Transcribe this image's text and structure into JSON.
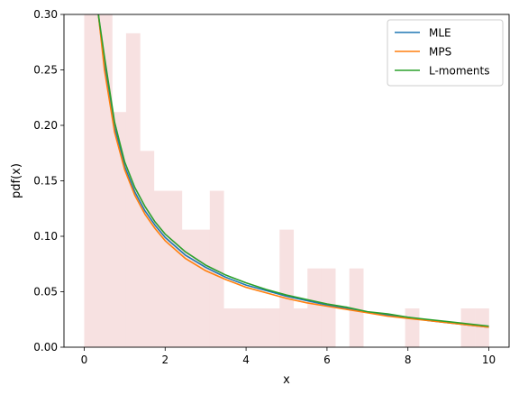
{
  "chart_data": {
    "type": "line",
    "xlabel": "x",
    "ylabel": "pdf(x)",
    "xlim": [
      -0.5,
      10.5
    ],
    "ylim": [
      0,
      0.3
    ],
    "x_ticks": [
      "0",
      "2",
      "4",
      "6",
      "8",
      "10"
    ],
    "y_ticks": [
      "0.00",
      "0.05",
      "0.10",
      "0.15",
      "0.20",
      "0.25",
      "0.30"
    ],
    "grid": false,
    "legend_position": "top-right",
    "histogram": {
      "color": "#f7e1e1",
      "bin_edges": [
        0,
        0.345,
        0.69,
        1.034,
        1.379,
        1.724,
        2.069,
        2.414,
        2.759,
        3.103,
        3.448,
        3.793,
        4.138,
        4.483,
        4.828,
        5.172,
        5.517,
        5.862,
        6.207,
        6.552,
        6.897,
        7.241,
        7.586,
        7.931,
        8.276,
        8.621,
        8.966,
        9.31,
        9.655,
        10.0
      ],
      "heights": [
        0.3,
        0.3,
        0.212,
        0.283,
        0.177,
        0.141,
        0.141,
        0.106,
        0.106,
        0.141,
        0.035,
        0.035,
        0.035,
        0.035,
        0.106,
        0.035,
        0.071,
        0.071,
        0.0,
        0.071,
        0.0,
        0.0,
        0.0,
        0.035,
        0.0,
        0.0,
        0.0,
        0.035,
        0.035
      ]
    },
    "series": [
      {
        "name": "MLE",
        "color": "#1f77b4",
        "x": [
          0.35,
          0.5,
          0.75,
          1.0,
          1.25,
          1.5,
          1.75,
          2.0,
          2.5,
          3.0,
          3.5,
          4.0,
          4.5,
          5.0,
          5.5,
          6.0,
          6.5,
          7.0,
          7.5,
          8.0,
          8.5,
          9.0,
          9.5,
          10.0
        ],
        "y": [
          0.3,
          0.255,
          0.198,
          0.163,
          0.14,
          0.123,
          0.11,
          0.099,
          0.083,
          0.072,
          0.063,
          0.056,
          0.051,
          0.046,
          0.042,
          0.038,
          0.035,
          0.0315,
          0.029,
          0.027,
          0.024,
          0.022,
          0.02,
          0.018
        ]
      },
      {
        "name": "MPS",
        "color": "#ff7f0e",
        "x": [
          0.35,
          0.5,
          0.75,
          1.0,
          1.25,
          1.5,
          1.75,
          2.0,
          2.5,
          3.0,
          3.5,
          4.0,
          4.5,
          5.0,
          5.5,
          6.0,
          6.5,
          7.0,
          7.5,
          8.0,
          8.5,
          9.0,
          9.5,
          10.0
        ],
        "y": [
          0.3,
          0.25,
          0.194,
          0.16,
          0.137,
          0.12,
          0.107,
          0.096,
          0.08,
          0.069,
          0.061,
          0.054,
          0.049,
          0.044,
          0.04,
          0.037,
          0.034,
          0.031,
          0.028,
          0.026,
          0.024,
          0.022,
          0.02,
          0.018
        ]
      },
      {
        "name": "L-moments",
        "color": "#2ca02c",
        "x": [
          0.35,
          0.5,
          0.75,
          1.0,
          1.25,
          1.5,
          1.75,
          2.0,
          2.5,
          3.0,
          3.5,
          4.0,
          4.5,
          5.0,
          5.5,
          6.0,
          6.5,
          7.0,
          7.5,
          8.0,
          8.5,
          9.0,
          9.5,
          10.0
        ],
        "y": [
          0.3,
          0.262,
          0.203,
          0.167,
          0.144,
          0.127,
          0.113,
          0.102,
          0.086,
          0.074,
          0.065,
          0.058,
          0.052,
          0.047,
          0.043,
          0.039,
          0.036,
          0.032,
          0.03,
          0.027,
          0.025,
          0.023,
          0.021,
          0.019
        ]
      }
    ]
  }
}
